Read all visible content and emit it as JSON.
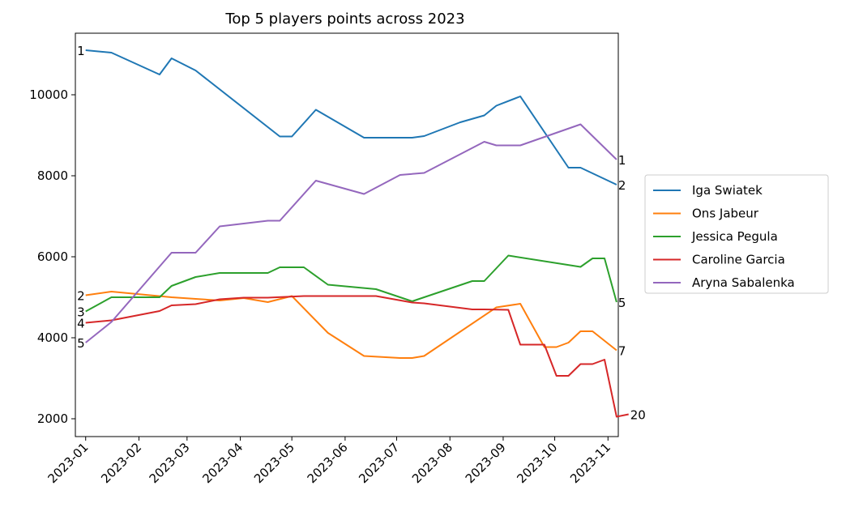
{
  "chart_data": {
    "type": "line",
    "title": "Top 5 players points across 2023",
    "xlabel": "",
    "ylabel": "",
    "x_ticks": [
      "2023-01",
      "2023-02",
      "2023-03",
      "2023-04",
      "2023-05",
      "2023-06",
      "2023-07",
      "2023-08",
      "2023-09",
      "2023-10",
      "2023-11"
    ],
    "y_ticks": [
      2000,
      4000,
      6000,
      8000,
      10000
    ],
    "xlim": [
      "2022-12-26",
      "2023-11-07"
    ],
    "ylim": [
      1560,
      11520
    ],
    "grid": false,
    "legend_position": "right",
    "series": [
      {
        "name": "Iga Swiatek",
        "color": "#1f77b4",
        "start_label": "1",
        "end_label": "2",
        "points": [
          [
            "2023-01-01",
            11100
          ],
          [
            "2023-01-16",
            11040
          ],
          [
            "2023-02-13",
            10500
          ],
          [
            "2023-02-20",
            10900
          ],
          [
            "2023-03-06",
            10600
          ],
          [
            "2023-04-24",
            8970
          ],
          [
            "2023-05-01",
            8970
          ],
          [
            "2023-05-15",
            9630
          ],
          [
            "2023-06-12",
            8940
          ],
          [
            "2023-06-26",
            8940
          ],
          [
            "2023-07-10",
            8940
          ],
          [
            "2023-07-17",
            8980
          ],
          [
            "2023-08-07",
            9320
          ],
          [
            "2023-08-21",
            9490
          ],
          [
            "2023-08-28",
            9730
          ],
          [
            "2023-09-11",
            9960
          ],
          [
            "2023-10-09",
            8200
          ],
          [
            "2023-10-16",
            8200
          ],
          [
            "2023-11-06",
            7780
          ]
        ]
      },
      {
        "name": "Ons Jabeur",
        "color": "#ff7f0e",
        "start_label": "2",
        "end_label": "7",
        "points": [
          [
            "2023-01-01",
            5050
          ],
          [
            "2023-01-16",
            5140
          ],
          [
            "2023-02-20",
            5000
          ],
          [
            "2023-03-06",
            4960
          ],
          [
            "2023-03-20",
            4920
          ],
          [
            "2023-04-03",
            4980
          ],
          [
            "2023-04-17",
            4880
          ],
          [
            "2023-05-01",
            5030
          ],
          [
            "2023-05-22",
            4120
          ],
          [
            "2023-06-12",
            3550
          ],
          [
            "2023-07-03",
            3500
          ],
          [
            "2023-07-10",
            3500
          ],
          [
            "2023-07-17",
            3550
          ],
          [
            "2023-08-28",
            4750
          ],
          [
            "2023-09-11",
            4840
          ],
          [
            "2023-09-25",
            3770
          ],
          [
            "2023-10-02",
            3770
          ],
          [
            "2023-10-09",
            3880
          ],
          [
            "2023-10-16",
            4160
          ],
          [
            "2023-10-23",
            4160
          ],
          [
            "2023-11-06",
            3690
          ]
        ]
      },
      {
        "name": "Jessica Pegula",
        "color": "#2ca02c",
        "start_label": "3",
        "end_label": "5",
        "points": [
          [
            "2023-01-01",
            4650
          ],
          [
            "2023-01-16",
            5000
          ],
          [
            "2023-02-13",
            5000
          ],
          [
            "2023-02-20",
            5280
          ],
          [
            "2023-03-06",
            5500
          ],
          [
            "2023-03-20",
            5600
          ],
          [
            "2023-04-03",
            5600
          ],
          [
            "2023-04-17",
            5600
          ],
          [
            "2023-04-24",
            5740
          ],
          [
            "2023-05-08",
            5740
          ],
          [
            "2023-05-22",
            5310
          ],
          [
            "2023-06-19",
            5200
          ],
          [
            "2023-07-10",
            4900
          ],
          [
            "2023-08-14",
            5400
          ],
          [
            "2023-08-21",
            5400
          ],
          [
            "2023-09-04",
            6030
          ],
          [
            "2023-10-16",
            5750
          ],
          [
            "2023-10-23",
            5960
          ],
          [
            "2023-10-30",
            5960
          ],
          [
            "2023-11-06",
            4880
          ]
        ]
      },
      {
        "name": "Caroline Garcia",
        "color": "#d62728",
        "start_label": "4",
        "end_label": "20",
        "points": [
          [
            "2023-01-01",
            4370
          ],
          [
            "2023-01-16",
            4430
          ],
          [
            "2023-02-13",
            4660
          ],
          [
            "2023-02-20",
            4800
          ],
          [
            "2023-03-06",
            4830
          ],
          [
            "2023-03-20",
            4950
          ],
          [
            "2023-04-03",
            4990
          ],
          [
            "2023-04-17",
            4990
          ],
          [
            "2023-05-08",
            5030
          ],
          [
            "2023-06-19",
            5030
          ],
          [
            "2023-07-10",
            4870
          ],
          [
            "2023-07-17",
            4850
          ],
          [
            "2023-08-14",
            4700
          ],
          [
            "2023-08-21",
            4700
          ],
          [
            "2023-09-04",
            4690
          ],
          [
            "2023-09-11",
            3830
          ],
          [
            "2023-09-25",
            3830
          ],
          [
            "2023-10-02",
            3060
          ],
          [
            "2023-10-09",
            3060
          ],
          [
            "2023-10-16",
            3350
          ],
          [
            "2023-10-23",
            3350
          ],
          [
            "2023-10-30",
            3460
          ],
          [
            "2023-11-06",
            2050
          ],
          [
            "2023-11-13",
            2110
          ]
        ]
      },
      {
        "name": "Aryna Sabalenka",
        "color": "#9467bd",
        "start_label": "5",
        "end_label": "1",
        "points": [
          [
            "2023-01-01",
            3880
          ],
          [
            "2023-01-16",
            4390
          ],
          [
            "2023-02-20",
            6100
          ],
          [
            "2023-03-06",
            6100
          ],
          [
            "2023-03-20",
            6750
          ],
          [
            "2023-04-17",
            6890
          ],
          [
            "2023-04-24",
            6890
          ],
          [
            "2023-05-15",
            7880
          ],
          [
            "2023-06-12",
            7550
          ],
          [
            "2023-07-03",
            8020
          ],
          [
            "2023-07-17",
            8070
          ],
          [
            "2023-08-21",
            8840
          ],
          [
            "2023-08-28",
            8750
          ],
          [
            "2023-09-11",
            8750
          ],
          [
            "2023-10-16",
            9270
          ],
          [
            "2023-11-06",
            8400
          ]
        ]
      }
    ]
  }
}
